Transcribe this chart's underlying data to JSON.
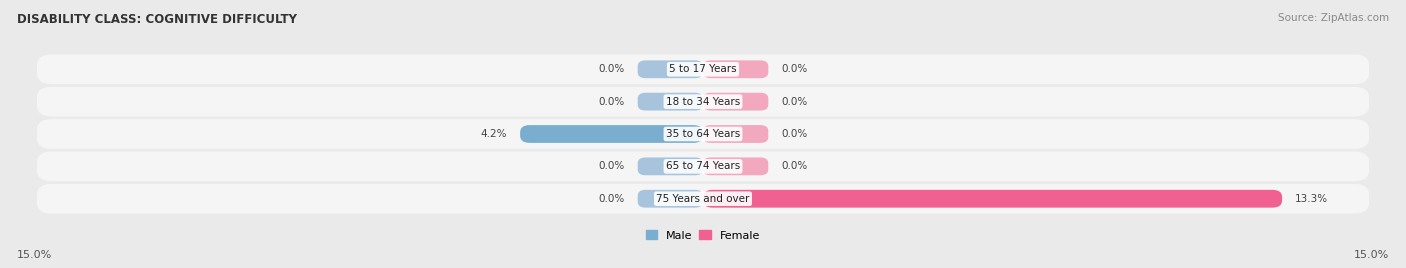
{
  "title": "DISABILITY CLASS: COGNITIVE DIFFICULTY",
  "source": "Source: ZipAtlas.com",
  "categories": [
    "5 to 17 Years",
    "18 to 34 Years",
    "35 to 64 Years",
    "65 to 74 Years",
    "75 Years and over"
  ],
  "male_values": [
    0.0,
    0.0,
    4.2,
    0.0,
    0.0
  ],
  "female_values": [
    0.0,
    0.0,
    0.0,
    0.0,
    13.3
  ],
  "max_val": 15.0,
  "male_color": "#a8c4dd",
  "female_color": "#f2a8be",
  "male_bar_color": "#7aaecf",
  "female_bar_color": "#f06090",
  "bg_color": "#eaeaea",
  "row_bg_color": "#f5f5f5",
  "axis_label_left": "15.0%",
  "axis_label_right": "15.0%",
  "legend_male": "Male",
  "legend_female": "Female",
  "stub_size": 1.5
}
